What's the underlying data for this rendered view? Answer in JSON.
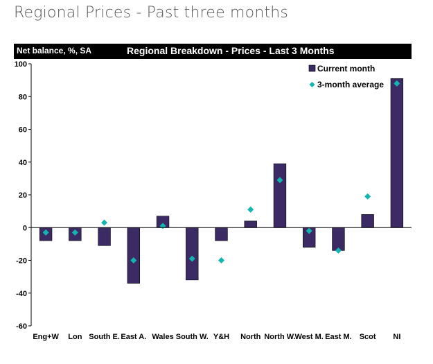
{
  "page": {
    "title": "Regional Prices - Past three months"
  },
  "chart_header": {
    "unit_label": "Net balance, %, SA",
    "title": "Regional Breakdown - Prices - Last 3 Months"
  },
  "colors": {
    "bar_fill": "#3b2a63",
    "marker_fill": "#12b5b0",
    "header_bg": "#000000"
  },
  "chart_data": {
    "type": "bar",
    "title": "Regional Breakdown - Prices - Last 3 Months",
    "ylabel": "Net balance, %, SA",
    "xlabel": "",
    "ylim": [
      -60,
      100
    ],
    "yticks": [
      100,
      80,
      60,
      40,
      20,
      0,
      -20,
      -40,
      -60
    ],
    "legend_position": "top-right",
    "categories": [
      "Eng+W",
      "Lon",
      "South E.",
      "East A.",
      "Wales",
      "South W.",
      "Y&H",
      "North",
      "North W.",
      "West M.",
      "East M.",
      "Scot",
      "NI"
    ],
    "series": [
      {
        "name": "Current month",
        "type": "bar",
        "values": [
          -8,
          -8,
          -11,
          -34,
          7,
          -32,
          -8,
          4,
          39,
          -12,
          -14,
          8,
          91
        ]
      },
      {
        "name": "3-month average",
        "type": "marker",
        "values": [
          -3,
          -3,
          3,
          -20,
          1,
          -19,
          -20,
          11,
          29,
          -2,
          -14,
          19,
          88
        ]
      }
    ]
  }
}
